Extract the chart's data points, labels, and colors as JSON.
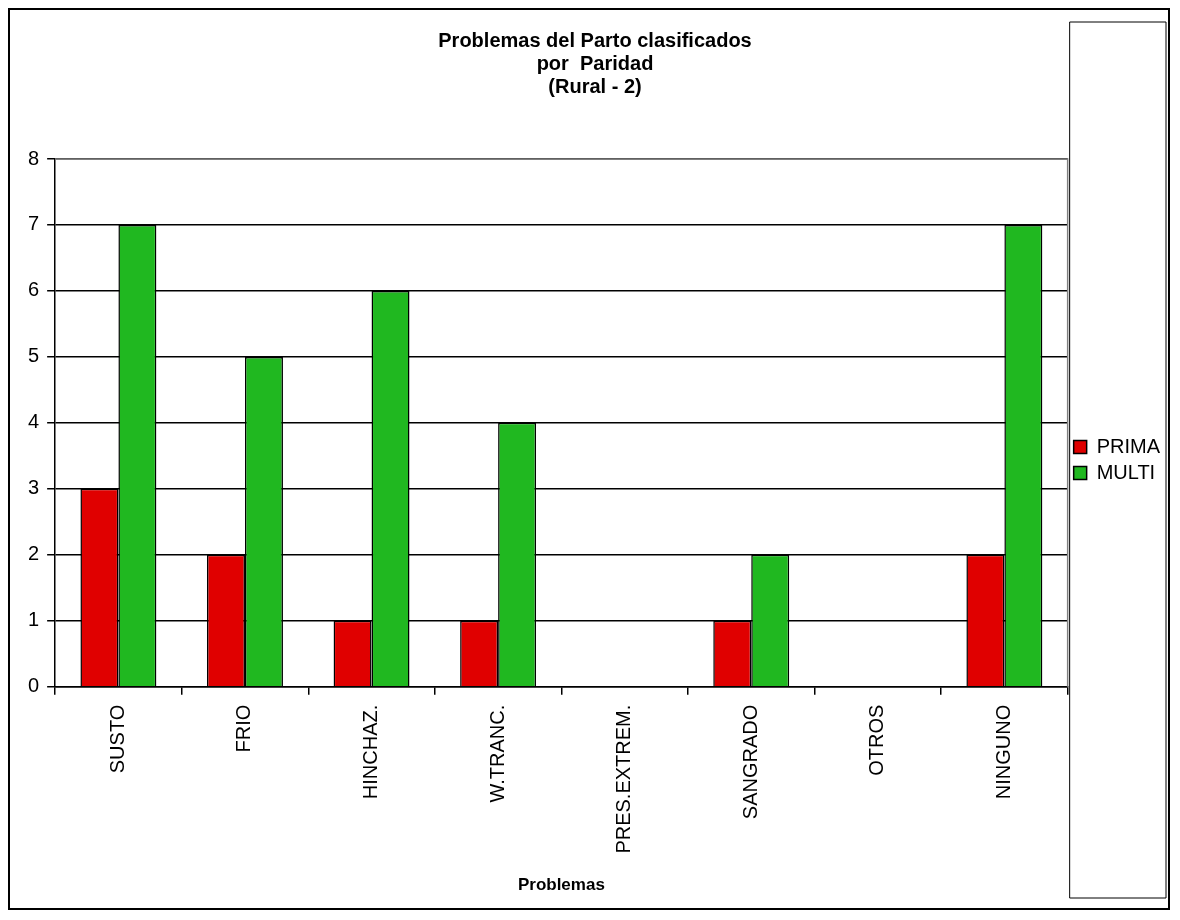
{
  "chart_data": {
    "type": "bar",
    "title": "Problemas del Parto clasificados\npor  Paridad\n(Rural - 2)",
    "xlabel": "Problemas",
    "categories": [
      "SUSTO",
      "FRIO",
      "HINCHAZ.",
      "W.TRANC.",
      "PRES.EXTREM.",
      "SANGRADO",
      "OTROS",
      "NINGUNO"
    ],
    "series": [
      {
        "name": "PRIMA",
        "color": "#e00000",
        "values": [
          3,
          2,
          1,
          1,
          0,
          1,
          0,
          2
        ]
      },
      {
        "name": "MULTI",
        "color": "#20b820",
        "values": [
          7,
          5,
          6,
          4,
          0,
          2,
          0,
          7
        ]
      }
    ],
    "ylim": [
      0,
      8
    ],
    "yticks": [
      0,
      1,
      2,
      3,
      4,
      5,
      6,
      7,
      8
    ],
    "grid": "y",
    "legend": "right"
  }
}
